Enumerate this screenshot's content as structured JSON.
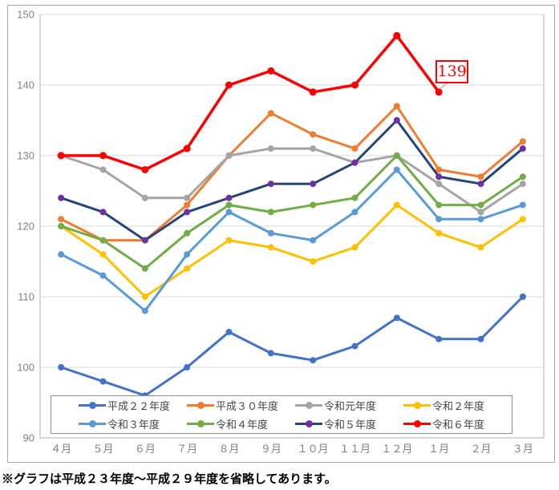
{
  "chart_data": {
    "type": "line",
    "title": "",
    "xlabel": "",
    "ylabel": "",
    "categories": [
      "４月",
      "５月",
      "６月",
      "７月",
      "８月",
      "９月",
      "１０月",
      "１１月",
      "１２月",
      "１月",
      "２月",
      "３月"
    ],
    "series": [
      {
        "name": "平成２２年度",
        "color": "#4472C4",
        "values": [
          100,
          98,
          96,
          100,
          105,
          102,
          101,
          103,
          107,
          104,
          104,
          110
        ]
      },
      {
        "name": "平成３０年度",
        "color": "#ED7D31",
        "values": [
          121,
          118,
          118,
          123,
          130,
          136,
          133,
          131,
          137,
          128,
          127,
          132
        ]
      },
      {
        "name": "令和元年度",
        "color": "#A5A5A5",
        "values": [
          130,
          128,
          124,
          124,
          130,
          131,
          131,
          129,
          130,
          126,
          122,
          126
        ]
      },
      {
        "name": "令和２年度",
        "color": "#FFC000",
        "values": [
          120,
          116,
          110,
          114,
          118,
          117,
          115,
          117,
          123,
          119,
          117,
          121
        ]
      },
      {
        "name": "令和３年度",
        "color": "#5B9BD5",
        "values": [
          116,
          113,
          108,
          116,
          122,
          119,
          118,
          122,
          128,
          121,
          121,
          123
        ]
      },
      {
        "name": "令和４年度",
        "color": "#70AD47",
        "values": [
          120,
          118,
          114,
          119,
          123,
          122,
          123,
          124,
          130,
          123,
          123,
          127
        ]
      },
      {
        "name": "令和５年度",
        "color": "#264478",
        "marker_color": "#7030A0",
        "values": [
          124,
          122,
          118,
          122,
          124,
          126,
          126,
          129,
          135,
          127,
          126,
          131
        ]
      },
      {
        "name": "令和６年度",
        "color": "#FF0000",
        "emphasis": true,
        "values": [
          130,
          130,
          128,
          131,
          140,
          142,
          139,
          140,
          147,
          139,
          null,
          null
        ]
      }
    ],
    "ylim": [
      90,
      150
    ],
    "yticks": [
      90,
      100,
      110,
      120,
      130,
      140,
      150
    ],
    "grid": true,
    "legend_position": "bottom-inside",
    "annotation": {
      "text": "139",
      "series": "令和６年度",
      "category_index": 9
    }
  },
  "footnote": "※グラフは平成２３年度～平成２９年度を省略してあります。",
  "colors": {
    "grid": "#D9D9D9",
    "axis": "#BFBFBF",
    "tick_label": "#808080",
    "legend_border": "#8C8C8C",
    "legend_text": "#444444",
    "annotation": "#FF0000",
    "leader_line": "#A6A6A6",
    "chart_border": "#A6A6A6"
  }
}
